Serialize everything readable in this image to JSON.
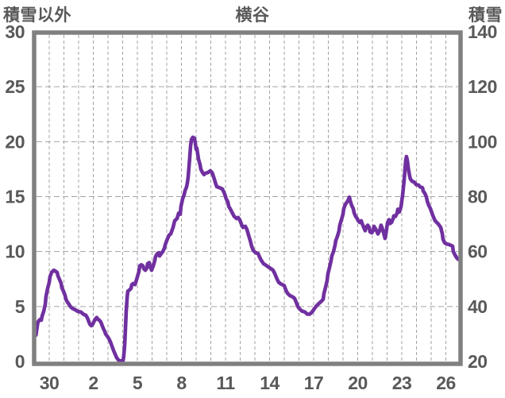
{
  "header": {
    "left_axis_title": "積雪以外",
    "chart_title": "横谷",
    "right_axis_title": "積雪"
  },
  "style": {
    "line_color": "#7030A0",
    "border_color": "#808080",
    "grid_color": "#A3A3A3",
    "text_color": "#595959",
    "background": "#FFFFFF"
  },
  "chart_data": {
    "type": "line",
    "title": "横谷",
    "legend": "none",
    "grid": "dashed, vertical every day, horizontal every 5 left-units",
    "left_axis": {
      "title": "積雪以外",
      "min": 0,
      "max": 30,
      "tick_step": 5,
      "ticks_top_to_bottom": [
        30,
        25,
        20,
        15,
        10,
        5,
        0
      ]
    },
    "right_axis": {
      "title": "積雪",
      "min": 20,
      "max": 140,
      "tick_step": 20,
      "ticks_top_to_bottom": [
        140,
        120,
        100,
        80,
        60,
        40,
        20
      ],
      "relation_to_left": "right_value = left_value * 4 + 20"
    },
    "x_axis": {
      "tick_labels": [
        "30",
        "2",
        "5",
        "8",
        "11",
        "14",
        "17",
        "20",
        "23",
        "26"
      ],
      "tick_day_positions": [
        0,
        3,
        6,
        9,
        12,
        15,
        18,
        21,
        24,
        27
      ],
      "day_range": [
        -0.9,
        27.9
      ],
      "gridline_every": 1,
      "note": "day 0 = tick labeled 30 (Dec 30); labels then Jan 2..26"
    },
    "series": [
      {
        "name": "積雪",
        "axis": "left-scale shown (right = x4 + 20)",
        "points": [
          [
            -0.9,
            2.4
          ],
          [
            -0.81,
            3.25
          ],
          [
            -0.76,
            3.6
          ],
          [
            -0.65,
            3.8
          ],
          [
            -0.54,
            3.75
          ],
          [
            -0.49,
            4.1
          ],
          [
            -0.38,
            4.55
          ],
          [
            -0.27,
            5.2
          ],
          [
            -0.22,
            5.9
          ],
          [
            -0.11,
            6.65
          ],
          [
            0.0,
            7.2
          ],
          [
            0.05,
            7.7
          ],
          [
            0.16,
            8.1
          ],
          [
            0.27,
            8.25
          ],
          [
            0.32,
            8.3
          ],
          [
            0.43,
            8.2
          ],
          [
            0.54,
            8.1
          ],
          [
            0.59,
            7.8
          ],
          [
            0.7,
            7.45
          ],
          [
            0.81,
            7.1
          ],
          [
            0.86,
            6.7
          ],
          [
            0.97,
            6.4
          ],
          [
            1.08,
            6.0
          ],
          [
            1.14,
            5.65
          ],
          [
            1.24,
            5.4
          ],
          [
            1.35,
            5.2
          ],
          [
            1.41,
            5.05
          ],
          [
            1.51,
            4.9
          ],
          [
            1.62,
            4.8
          ],
          [
            1.78,
            4.7
          ],
          [
            1.95,
            4.55
          ],
          [
            2.16,
            4.5
          ],
          [
            2.32,
            4.3
          ],
          [
            2.49,
            4.2
          ],
          [
            2.59,
            4.0
          ],
          [
            2.7,
            3.6
          ],
          [
            2.76,
            3.4
          ],
          [
            2.86,
            3.25
          ],
          [
            2.97,
            3.4
          ],
          [
            3.03,
            3.6
          ],
          [
            3.14,
            3.85
          ],
          [
            3.24,
            4.0
          ],
          [
            3.3,
            3.85
          ],
          [
            3.41,
            3.75
          ],
          [
            3.51,
            3.6
          ],
          [
            3.57,
            3.4
          ],
          [
            3.68,
            3.0
          ],
          [
            3.78,
            2.75
          ],
          [
            3.84,
            2.5
          ],
          [
            3.95,
            2.3
          ],
          [
            4.05,
            2.1
          ],
          [
            4.16,
            1.8
          ],
          [
            4.27,
            1.4
          ],
          [
            4.38,
            1.0
          ],
          [
            4.49,
            0.65
          ],
          [
            4.59,
            0.35
          ],
          [
            4.7,
            0.15
          ],
          [
            4.81,
            0.05
          ],
          [
            4.92,
            0.05
          ],
          [
            5.03,
            0.1
          ],
          [
            5.08,
            0.6
          ],
          [
            5.14,
            1.6
          ],
          [
            5.19,
            3.0
          ],
          [
            5.24,
            4.5
          ],
          [
            5.3,
            5.8
          ],
          [
            5.35,
            6.4
          ],
          [
            5.46,
            6.5
          ],
          [
            5.57,
            6.65
          ],
          [
            5.62,
            7.0
          ],
          [
            5.73,
            7.1
          ],
          [
            5.84,
            7.0
          ],
          [
            5.89,
            7.2
          ],
          [
            6.0,
            7.7
          ],
          [
            6.11,
            8.2
          ],
          [
            6.16,
            8.7
          ],
          [
            6.27,
            8.8
          ],
          [
            6.38,
            8.7
          ],
          [
            6.43,
            8.45
          ],
          [
            6.54,
            8.3
          ],
          [
            6.65,
            8.5
          ],
          [
            6.7,
            8.9
          ],
          [
            6.81,
            9.0
          ],
          [
            6.86,
            8.7
          ],
          [
            6.97,
            8.3
          ],
          [
            7.08,
            8.7
          ],
          [
            7.19,
            9.2
          ],
          [
            7.24,
            9.55
          ],
          [
            7.35,
            9.8
          ],
          [
            7.46,
            9.9
          ],
          [
            7.51,
            9.6
          ],
          [
            7.62,
            9.8
          ],
          [
            7.73,
            10.0
          ],
          [
            7.84,
            10.3
          ],
          [
            7.89,
            10.6
          ],
          [
            8.0,
            11.0
          ],
          [
            8.16,
            11.5
          ],
          [
            8.27,
            11.6
          ],
          [
            8.43,
            12.2
          ],
          [
            8.54,
            12.8
          ],
          [
            8.7,
            13.0
          ],
          [
            8.81,
            13.5
          ],
          [
            8.92,
            13.4
          ],
          [
            8.97,
            14.1
          ],
          [
            9.08,
            14.8
          ],
          [
            9.19,
            15.2
          ],
          [
            9.24,
            15.5
          ],
          [
            9.35,
            15.9
          ],
          [
            9.41,
            16.3
          ],
          [
            9.46,
            16.8
          ],
          [
            9.51,
            17.6
          ],
          [
            9.57,
            18.6
          ],
          [
            9.62,
            19.6
          ],
          [
            9.68,
            20.2
          ],
          [
            9.78,
            20.4
          ],
          [
            9.89,
            20.3
          ],
          [
            9.95,
            19.8
          ],
          [
            10.0,
            19.3
          ],
          [
            10.05,
            19.4
          ],
          [
            10.11,
            18.9
          ],
          [
            10.16,
            18.4
          ],
          [
            10.27,
            17.9
          ],
          [
            10.32,
            17.5
          ],
          [
            10.43,
            17.2
          ],
          [
            10.54,
            17.0
          ],
          [
            10.59,
            17.1
          ],
          [
            10.81,
            17.2
          ],
          [
            10.97,
            17.35
          ],
          [
            11.08,
            17.2
          ],
          [
            11.14,
            17.0
          ],
          [
            11.24,
            16.6
          ],
          [
            11.35,
            16.1
          ],
          [
            11.41,
            15.9
          ],
          [
            11.62,
            15.8
          ],
          [
            11.78,
            15.7
          ],
          [
            11.89,
            15.4
          ],
          [
            11.95,
            15.2
          ],
          [
            12.05,
            14.8
          ],
          [
            12.16,
            14.5
          ],
          [
            12.22,
            14.1
          ],
          [
            12.32,
            13.9
          ],
          [
            12.43,
            13.6
          ],
          [
            12.59,
            13.2
          ],
          [
            12.76,
            13.0
          ],
          [
            12.86,
            13.1
          ],
          [
            12.97,
            12.9
          ],
          [
            13.08,
            12.5
          ],
          [
            13.19,
            12.2
          ],
          [
            13.35,
            12.3
          ],
          [
            13.46,
            12.0
          ],
          [
            13.57,
            11.5
          ],
          [
            13.68,
            11.0
          ],
          [
            13.78,
            10.5
          ],
          [
            13.89,
            10.1
          ],
          [
            14.05,
            9.9
          ],
          [
            14.22,
            9.8
          ],
          [
            14.32,
            9.5
          ],
          [
            14.43,
            9.2
          ],
          [
            14.59,
            8.9
          ],
          [
            14.76,
            8.75
          ],
          [
            14.97,
            8.55
          ],
          [
            15.14,
            8.4
          ],
          [
            15.24,
            8.3
          ],
          [
            15.35,
            8.0
          ],
          [
            15.51,
            7.5
          ],
          [
            15.62,
            7.2
          ],
          [
            15.78,
            7.05
          ],
          [
            16.0,
            6.9
          ],
          [
            16.11,
            6.5
          ],
          [
            16.22,
            6.2
          ],
          [
            16.38,
            6.0
          ],
          [
            16.54,
            5.9
          ],
          [
            16.7,
            5.75
          ],
          [
            16.81,
            5.4
          ],
          [
            16.92,
            5.0
          ],
          [
            17.03,
            4.8
          ],
          [
            17.19,
            4.6
          ],
          [
            17.41,
            4.5
          ],
          [
            17.57,
            4.3
          ],
          [
            17.73,
            4.3
          ],
          [
            17.89,
            4.5
          ],
          [
            18.05,
            4.8
          ],
          [
            18.22,
            5.1
          ],
          [
            18.38,
            5.3
          ],
          [
            18.54,
            5.5
          ],
          [
            18.65,
            5.65
          ],
          [
            18.7,
            6.15
          ],
          [
            18.81,
            6.75
          ],
          [
            18.92,
            7.35
          ],
          [
            18.97,
            7.95
          ],
          [
            19.08,
            8.55
          ],
          [
            19.19,
            9.2
          ],
          [
            19.24,
            9.6
          ],
          [
            19.35,
            10.0
          ],
          [
            19.46,
            10.6
          ],
          [
            19.51,
            11.0
          ],
          [
            19.62,
            11.4
          ],
          [
            19.73,
            11.9
          ],
          [
            19.78,
            12.4
          ],
          [
            19.89,
            12.9
          ],
          [
            20.0,
            13.4
          ],
          [
            20.05,
            13.9
          ],
          [
            20.16,
            14.3
          ],
          [
            20.32,
            14.6
          ],
          [
            20.43,
            14.95
          ],
          [
            20.49,
            14.6
          ],
          [
            20.59,
            14.2
          ],
          [
            20.7,
            13.9
          ],
          [
            20.76,
            13.5
          ],
          [
            20.86,
            13.2
          ],
          [
            20.97,
            13.0
          ],
          [
            21.03,
            12.8
          ],
          [
            21.14,
            12.65
          ],
          [
            21.24,
            12.8
          ],
          [
            21.3,
            12.55
          ],
          [
            21.41,
            12.2
          ],
          [
            21.51,
            11.9
          ],
          [
            21.57,
            12.2
          ],
          [
            21.68,
            12.4
          ],
          [
            21.78,
            12.2
          ],
          [
            21.84,
            11.8
          ],
          [
            21.95,
            11.7
          ],
          [
            22.05,
            11.9
          ],
          [
            22.11,
            12.3
          ],
          [
            22.22,
            12.05
          ],
          [
            22.32,
            11.8
          ],
          [
            22.38,
            11.6
          ],
          [
            22.49,
            11.9
          ],
          [
            22.59,
            12.4
          ],
          [
            22.65,
            12.2
          ],
          [
            22.76,
            11.7
          ],
          [
            22.86,
            11.2
          ],
          [
            22.92,
            11.6
          ],
          [
            23.03,
            12.65
          ],
          [
            23.14,
            12.9
          ],
          [
            23.19,
            12.55
          ],
          [
            23.3,
            12.65
          ],
          [
            23.41,
            13.0
          ],
          [
            23.46,
            13.25
          ],
          [
            23.57,
            13.2
          ],
          [
            23.68,
            13.5
          ],
          [
            23.73,
            13.85
          ],
          [
            23.84,
            13.6
          ],
          [
            23.95,
            14.1
          ],
          [
            24.0,
            14.6
          ],
          [
            24.05,
            15.05
          ],
          [
            24.11,
            15.8
          ],
          [
            24.16,
            16.5
          ],
          [
            24.22,
            17.5
          ],
          [
            24.27,
            18.3
          ],
          [
            24.32,
            18.65
          ],
          [
            24.38,
            18.3
          ],
          [
            24.43,
            17.7
          ],
          [
            24.49,
            17.2
          ],
          [
            24.54,
            16.85
          ],
          [
            24.59,
            16.6
          ],
          [
            24.7,
            16.4
          ],
          [
            24.86,
            16.3
          ],
          [
            24.97,
            16.1
          ],
          [
            25.14,
            16.05
          ],
          [
            25.24,
            15.9
          ],
          [
            25.41,
            15.8
          ],
          [
            25.46,
            15.5
          ],
          [
            25.57,
            15.3
          ],
          [
            25.68,
            14.95
          ],
          [
            25.73,
            14.6
          ],
          [
            25.84,
            14.2
          ],
          [
            25.95,
            13.9
          ],
          [
            26.11,
            13.3
          ],
          [
            26.27,
            12.8
          ],
          [
            26.49,
            12.5
          ],
          [
            26.65,
            12.2
          ],
          [
            26.76,
            11.6
          ],
          [
            26.81,
            11.1
          ],
          [
            26.92,
            10.8
          ],
          [
            27.03,
            10.7
          ],
          [
            27.19,
            10.65
          ],
          [
            27.3,
            10.6
          ],
          [
            27.46,
            10.5
          ],
          [
            27.51,
            10.0
          ],
          [
            27.62,
            9.7
          ],
          [
            27.73,
            9.45
          ],
          [
            27.84,
            9.3
          ]
        ]
      }
    ]
  }
}
